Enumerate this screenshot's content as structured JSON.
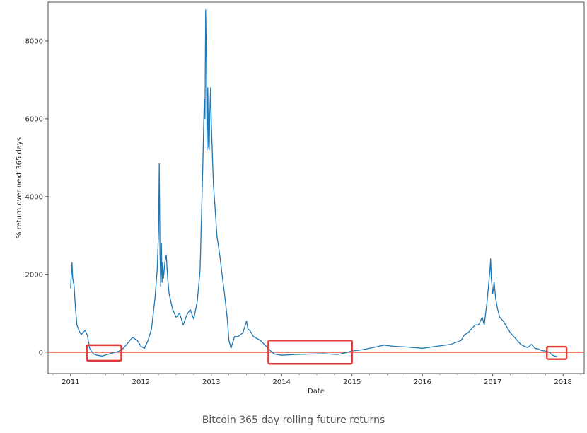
{
  "caption": "Bitcoin 365 day rolling future returns",
  "chart_data": {
    "type": "line",
    "xlabel": "Date",
    "ylabel": "% return over next 365 days",
    "xlim": [
      2010.68,
      2018.3
    ],
    "ylim": [
      -550,
      9000
    ],
    "xticks": [
      2011,
      2012,
      2013,
      2014,
      2015,
      2016,
      2017,
      2018
    ],
    "yticks": [
      0,
      2000,
      4000,
      6000,
      8000
    ],
    "grid": false,
    "line_color": "#1f77b4",
    "reference_line": {
      "y": 0,
      "color": "#e53935"
    },
    "highlight_color": "#e53935",
    "highlight_ranges": [
      {
        "x0": 2011.23,
        "x1": 2011.72,
        "y0": -220,
        "y1": 180
      },
      {
        "x0": 2013.81,
        "x1": 2015.0,
        "y0": -300,
        "y1": 300
      },
      {
        "x0": 2017.77,
        "x1": 2018.05,
        "y0": -180,
        "y1": 140
      }
    ],
    "series": [
      {
        "x": [
          2011.0,
          2011.02,
          2011.03,
          2011.05,
          2011.07,
          2011.09,
          2011.12,
          2011.15,
          2011.18,
          2011.21,
          2011.24,
          2011.27,
          2011.3,
          2011.33,
          2011.38,
          2011.45,
          2011.52,
          2011.6,
          2011.68,
          2011.75,
          2011.82,
          2011.88,
          2011.95,
          2012.0,
          2012.05,
          2012.1,
          2012.15,
          2012.2,
          2012.23,
          2012.25,
          2012.26,
          2012.27,
          2012.28,
          2012.29,
          2012.3,
          2012.31,
          2012.32,
          2012.34,
          2012.36,
          2012.38,
          2012.4,
          2012.45,
          2012.5,
          2012.55,
          2012.6,
          2012.65,
          2012.7,
          2012.75,
          2012.8,
          2012.84,
          2012.86,
          2012.88,
          2012.9,
          2012.91,
          2012.92,
          2012.93,
          2012.94,
          2012.95,
          2012.96,
          2012.97,
          2012.98,
          2012.99,
          2013.0,
          2013.02,
          2013.03,
          2013.05,
          2013.08,
          2013.12,
          2013.16,
          2013.2,
          2013.23,
          2013.25,
          2013.28,
          2013.33,
          2013.38,
          2013.45,
          2013.5,
          2013.52,
          2013.55,
          2013.6,
          2013.7,
          2013.78,
          2013.85,
          2013.9,
          2014.0,
          2014.2,
          2014.4,
          2014.6,
          2014.8,
          2014.9,
          2015.0,
          2015.1,
          2015.2,
          2015.3,
          2015.45,
          2015.6,
          2015.8,
          2016.0,
          2016.2,
          2016.4,
          2016.55,
          2016.6,
          2016.65,
          2016.7,
          2016.75,
          2016.8,
          2016.85,
          2016.88,
          2016.9,
          2016.92,
          2016.94,
          2016.96,
          2016.97,
          2016.98,
          2017.0,
          2017.02,
          2017.04,
          2017.07,
          2017.1,
          2017.15,
          2017.2,
          2017.25,
          2017.3,
          2017.35,
          2017.4,
          2017.45,
          2017.5,
          2017.55,
          2017.6,
          2017.65,
          2017.7,
          2017.75,
          2017.8,
          2017.85,
          2017.92
        ],
        "y": [
          1650,
          2300,
          1900,
          1700,
          1100,
          700,
          550,
          450,
          520,
          560,
          420,
          100,
          10,
          -50,
          -80,
          -100,
          -60,
          -20,
          20,
          100,
          250,
          380,
          300,
          150,
          100,
          300,
          600,
          1400,
          2100,
          3100,
          4850,
          2600,
          1700,
          2800,
          1800,
          2300,
          1900,
          2300,
          2500,
          1900,
          1500,
          1100,
          900,
          1000,
          700,
          950,
          1100,
          850,
          1300,
          2100,
          3500,
          4800,
          6500,
          6000,
          8800,
          7600,
          5200,
          6800,
          5300,
          5200,
          6200,
          6800,
          5900,
          4800,
          4300,
          3800,
          3000,
          2500,
          1900,
          1300,
          800,
          300,
          100,
          400,
          400,
          500,
          800,
          600,
          550,
          400,
          300,
          150,
          20,
          -50,
          -80,
          -60,
          -50,
          -40,
          -60,
          -20,
          30,
          50,
          80,
          120,
          180,
          150,
          130,
          100,
          150,
          200,
          300,
          450,
          500,
          600,
          700,
          700,
          900,
          700,
          1000,
          1300,
          1700,
          2100,
          2400,
          1900,
          1500,
          1800,
          1400,
          1100,
          900,
          800,
          650,
          500,
          400,
          300,
          200,
          150,
          120,
          200,
          100,
          80,
          40,
          30,
          0,
          -80,
          -120
        ]
      }
    ]
  }
}
